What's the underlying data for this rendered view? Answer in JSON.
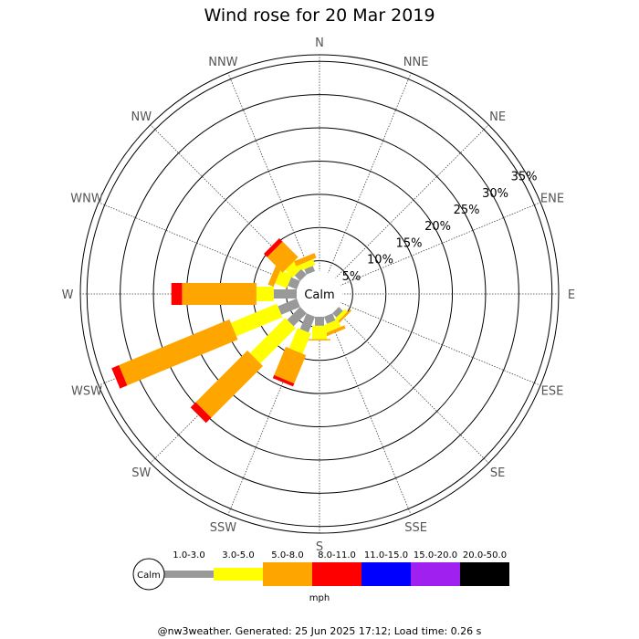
{
  "chart_data": {
    "type": "wind-rose",
    "title": "Wind rose for 20 Mar 2019",
    "directions": [
      "N",
      "NNE",
      "NE",
      "ENE",
      "E",
      "ESE",
      "SE",
      "SSE",
      "S",
      "SSW",
      "SW",
      "WSW",
      "W",
      "WNW",
      "NW",
      "NNW"
    ],
    "rings": [
      5,
      10,
      15,
      20,
      25,
      30,
      35
    ],
    "ring_labels": [
      "5%",
      "10%",
      "15%",
      "20%",
      "25%",
      "30%",
      "35%"
    ],
    "rmax": 36,
    "calm_label": "Calm",
    "speed_unit": "mph",
    "speed_bins": [
      {
        "label": "1.0-3.0",
        "color": "#999999"
      },
      {
        "label": "3.0-5.0",
        "color": "#ffff00"
      },
      {
        "label": "5.0-8.0",
        "color": "#ffa500"
      },
      {
        "label": "8.0-11.0",
        "color": "#ff0000"
      },
      {
        "label": "11.0-15.0",
        "color": "#0000ff"
      },
      {
        "label": "15.0-20.0",
        "color": "#a020f0"
      },
      {
        "label": "20.0-50.0",
        "color": "#000000"
      }
    ],
    "cumulative_percent": {
      "N": [
        0,
        0,
        0,
        0,
        0,
        0,
        0
      ],
      "NNE": [
        0,
        0,
        0,
        0,
        0,
        0,
        0
      ],
      "NE": [
        0,
        0,
        0,
        0,
        0,
        0,
        0
      ],
      "ENE": [
        0,
        0,
        0,
        0,
        0,
        0,
        0
      ],
      "E": [
        0,
        0,
        0,
        0,
        0,
        0,
        0
      ],
      "ESE": [
        0,
        0,
        0,
        0,
        0,
        0,
        0
      ],
      "SE": [
        4.3,
        4.9,
        5.2,
        5.2,
        5.2,
        5.2,
        5.2
      ],
      "SSE": [
        4.6,
        5.8,
        6.3,
        6.3,
        6.3,
        6.3,
        6.3
      ],
      "S": [
        4.8,
        6.8,
        7.0,
        7.0,
        7.0,
        7.0,
        7.0
      ],
      "SSW": [
        6.0,
        9.3,
        13.9,
        14.4,
        14.4,
        14.4,
        14.4
      ],
      "SW": [
        6.2,
        13.7,
        24.7,
        25.8,
        25.8,
        25.8,
        25.8
      ],
      "WSW": [
        6.5,
        14.0,
        32.0,
        33.2,
        33.2,
        33.2,
        33.2
      ],
      "W": [
        6.9,
        9.5,
        20.7,
        22.3,
        22.3,
        22.3,
        22.3
      ],
      "WNW": [
        4.9,
        6.8,
        7.7,
        7.7,
        7.7,
        7.7,
        7.7
      ],
      "NW": [
        4.6,
        6.2,
        9.5,
        10.2,
        10.2,
        10.2,
        10.2
      ],
      "NNW": [
        4.3,
        5.2,
        6.0,
        6.0,
        6.0,
        6.0,
        6.0
      ]
    }
  },
  "footer": "@nw3weather. Generated: 25 Jun 2025 17:12; Load time: 0.26 s"
}
